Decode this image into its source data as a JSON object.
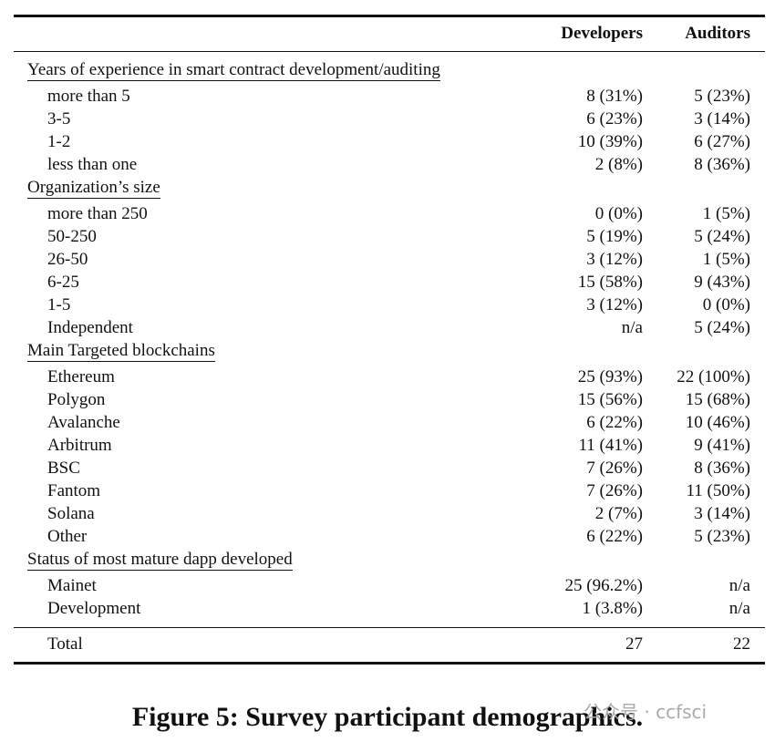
{
  "table": {
    "columns": [
      "Developers",
      "Auditors"
    ],
    "sections": [
      {
        "title": "Years of experience in smart contract development/auditing",
        "rows": [
          {
            "label": "more than 5",
            "developers": "8 (31%)",
            "auditors": "5 (23%)"
          },
          {
            "label": "3-5",
            "developers": "6 (23%)",
            "auditors": "3 (14%)"
          },
          {
            "label": "1-2",
            "developers": "10 (39%)",
            "auditors": "6 (27%)"
          },
          {
            "label": "less than one",
            "developers": "2 (8%)",
            "auditors": "8 (36%)"
          }
        ]
      },
      {
        "title": "Organization’s size",
        "rows": [
          {
            "label": "more than 250",
            "developers": "0 (0%)",
            "auditors": "1 (5%)"
          },
          {
            "label": "50-250",
            "developers": "5 (19%)",
            "auditors": "5 (24%)"
          },
          {
            "label": "26-50",
            "developers": "3 (12%)",
            "auditors": "1 (5%)"
          },
          {
            "label": "6-25",
            "developers": "15 (58%)",
            "auditors": "9 (43%)"
          },
          {
            "label": "1-5",
            "developers": "3 (12%)",
            "auditors": "0 (0%)"
          },
          {
            "label": "Independent",
            "developers": "n/a",
            "auditors": "5 (24%)"
          }
        ]
      },
      {
        "title": "Main Targeted blockchains",
        "rows": [
          {
            "label": "Ethereum",
            "developers": "25 (93%)",
            "auditors": "22 (100%)"
          },
          {
            "label": "Polygon",
            "developers": "15 (56%)",
            "auditors": "15 (68%)"
          },
          {
            "label": "Avalanche",
            "developers": "6 (22%)",
            "auditors": "10 (46%)"
          },
          {
            "label": "Arbitrum",
            "developers": "11 (41%)",
            "auditors": "9 (41%)"
          },
          {
            "label": "BSC",
            "developers": "7 (26%)",
            "auditors": "8 (36%)"
          },
          {
            "label": "Fantom",
            "developers": "7 (26%)",
            "auditors": "11 (50%)"
          },
          {
            "label": "Solana",
            "developers": "2 (7%)",
            "auditors": "3 (14%)"
          },
          {
            "label": "Other",
            "developers": "6 (22%)",
            "auditors": "5 (23%)"
          }
        ]
      },
      {
        "title": "Status of most mature dapp developed",
        "rows": [
          {
            "label": "Mainet",
            "developers": "25 (96.2%)",
            "auditors": "n/a"
          },
          {
            "label": "Development",
            "developers": "1 (3.8%)",
            "auditors": "n/a"
          }
        ]
      }
    ],
    "total": {
      "label": "Total",
      "developers": 27,
      "auditors": 22
    }
  },
  "caption": "Figure 5: Survey participant demographics.",
  "watermark": "公众号 · ccfsci"
}
